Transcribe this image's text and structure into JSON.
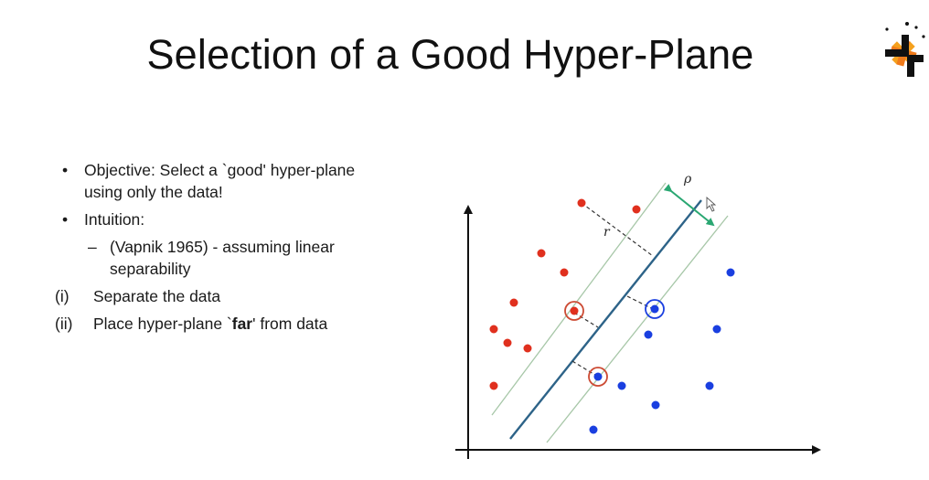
{
  "slide": {
    "title": "Selection of a Good Hyper-Plane"
  },
  "bullets": [
    {
      "marker": "•",
      "text": "Objective: Select a `good' hyper-plane using only the data!"
    },
    {
      "marker": "•",
      "text": "Intuition:"
    },
    {
      "marker": "–",
      "text": "(Vapnik 1965) - assuming linear separability"
    },
    {
      "marker": "(i)",
      "text": "Separate the data"
    },
    {
      "marker": "(ii)",
      "text_before": "Place hyper-plane `",
      "text_bold": "far",
      "text_after": "' from data"
    }
  ],
  "figure": {
    "label_rho": "ρ",
    "label_r": "r",
    "colors": {
      "class_a": "#e0301e",
      "class_b": "#1a3fe0",
      "hyperplane": "#2d6388",
      "margin_line": "#a7c7a8",
      "margin_arrow": "#2aa772",
      "axis": "#111111"
    }
  }
}
